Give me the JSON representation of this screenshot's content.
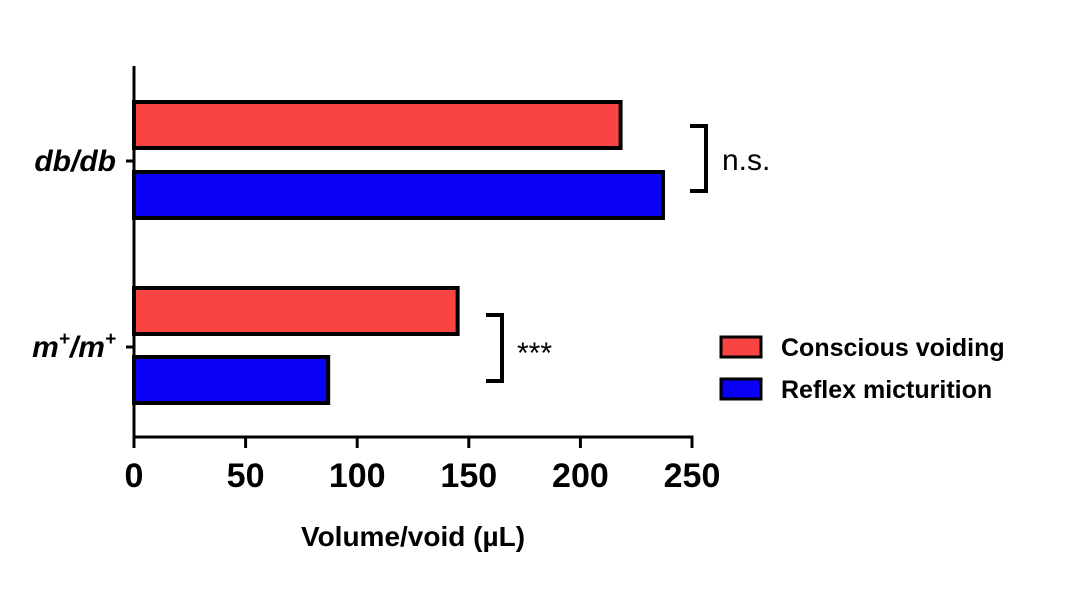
{
  "chart_data": {
    "type": "bar",
    "orientation": "horizontal",
    "categories": [
      {
        "base": "db/db",
        "superscript": ""
      },
      {
        "base": "m",
        "superscript": "+"
      }
    ],
    "series": [
      {
        "name": "Conscious voiding",
        "color": "#fa4444",
        "values": [
          218,
          145
        ]
      },
      {
        "name": "Reflex micturition",
        "color": "#0a00f5",
        "values": [
          237,
          87
        ]
      }
    ],
    "xlabel": "Volume/void (µL)",
    "ylabel": "",
    "xlim": [
      0,
      250
    ],
    "xticks": [
      "0",
      "50",
      "100",
      "150",
      "200",
      "250"
    ],
    "grid": false,
    "legend_position": "right",
    "significance": [
      "n.s.",
      "***"
    ]
  }
}
